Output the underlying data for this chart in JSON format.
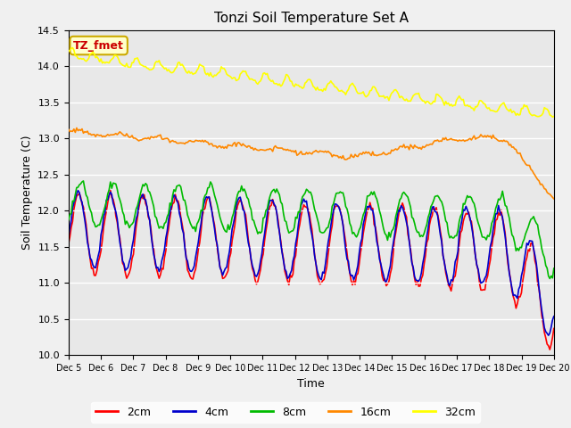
{
  "title": "Tonzi Soil Temperature Set A",
  "xlabel": "Time",
  "ylabel": "Soil Temperature (C)",
  "ylim": [
    10.0,
    14.5
  ],
  "fig_facecolor": "#f0f0f0",
  "ax_facecolor": "#e8e8e8",
  "annotation_text": "TZ_fmet",
  "annotation_color": "#cc0000",
  "annotation_bg": "#ffffcc",
  "annotation_border": "#ccaa00",
  "legend_labels": [
    "2cm",
    "4cm",
    "8cm",
    "16cm",
    "32cm"
  ],
  "line_colors": [
    "#ff0000",
    "#0000cc",
    "#00bb00",
    "#ff8800",
    "#ffff00"
  ],
  "x_ticks": [
    "Dec 5",
    "Dec 6",
    "Dec 7",
    "Dec 8",
    "Dec 9",
    "Dec 10",
    "Dec 11",
    "Dec 12",
    "Dec 13",
    "Dec 14",
    "Dec 15",
    "Dec 16",
    "Dec 17",
    "Dec 18",
    "Dec 19",
    "Dec 20"
  ],
  "grid_color": "white",
  "lw": 1.2
}
